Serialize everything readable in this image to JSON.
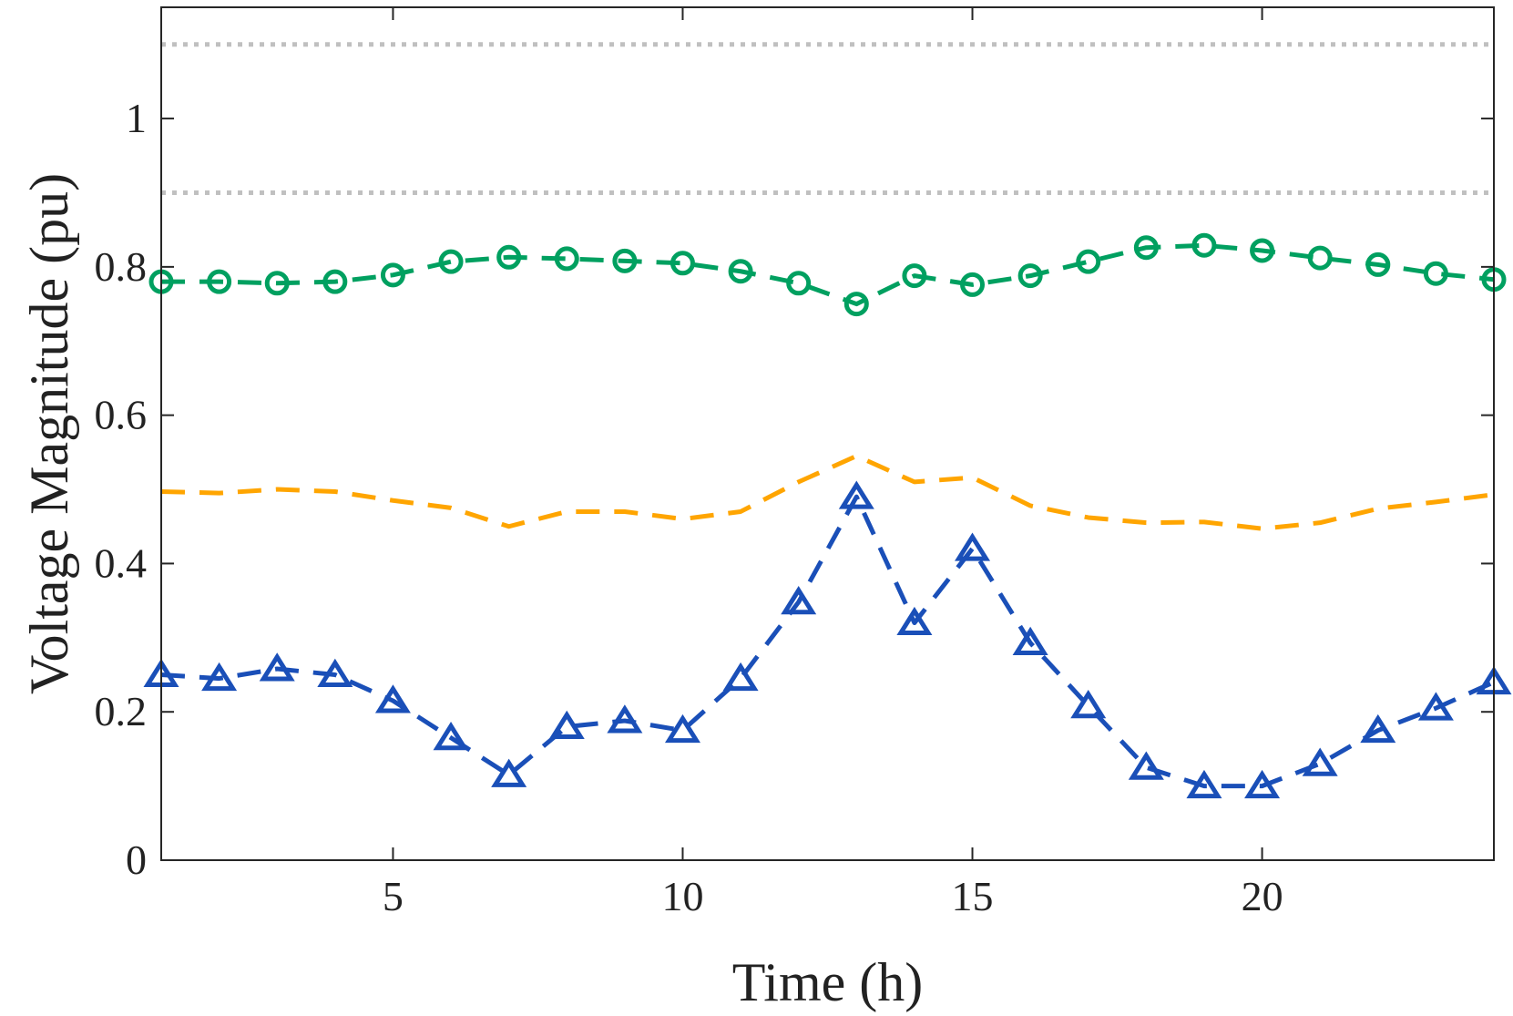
{
  "chart_data": {
    "type": "line",
    "title": "",
    "xlabel": "Time (h)",
    "ylabel": "Voltage Magnitude (pu)",
    "xlim": [
      1,
      24
    ],
    "ylim": [
      0,
      1.15
    ],
    "xticks": [
      5,
      10,
      15,
      20
    ],
    "yticks": [
      0,
      0.2,
      0.4,
      0.6,
      0.8,
      1
    ],
    "ytick_labels": [
      "0",
      "0.2",
      "0.4",
      "0.6",
      "0.8",
      "1"
    ],
    "grid": false,
    "x": [
      1,
      2,
      3,
      4,
      5,
      6,
      7,
      8,
      9,
      10,
      11,
      12,
      13,
      14,
      15,
      16,
      17,
      18,
      19,
      20,
      21,
      22,
      23,
      24
    ],
    "reference_lines": [
      {
        "name": "upper-limit",
        "y": 1.1,
        "color": "#c0c0c0"
      },
      {
        "name": "lower-limit",
        "y": 0.9,
        "color": "#c0c0c0"
      }
    ],
    "series": [
      {
        "name": "green-circles",
        "color": "#00a060",
        "marker": "circle",
        "values": [
          0.78,
          0.78,
          0.778,
          0.78,
          0.789,
          0.807,
          0.813,
          0.811,
          0.808,
          0.805,
          0.794,
          0.778,
          0.75,
          0.788,
          0.776,
          0.788,
          0.807,
          0.826,
          0.829,
          0.822,
          0.812,
          0.803,
          0.791,
          0.783
        ]
      },
      {
        "name": "orange-dashed",
        "color": "#ffa500",
        "marker": "none",
        "values": [
          0.497,
          0.495,
          0.5,
          0.497,
          0.485,
          0.475,
          0.45,
          0.47,
          0.47,
          0.46,
          0.47,
          0.51,
          0.545,
          0.51,
          0.516,
          0.478,
          0.462,
          0.455,
          0.456,
          0.447,
          0.455,
          0.474,
          0.483,
          0.493
        ]
      },
      {
        "name": "blue-triangles",
        "color": "#1a4fb8",
        "marker": "triangle",
        "values": [
          0.25,
          0.245,
          0.258,
          0.25,
          0.215,
          0.165,
          0.115,
          0.18,
          0.188,
          0.175,
          0.245,
          0.348,
          0.49,
          0.32,
          0.42,
          0.293,
          0.208,
          0.125,
          0.1,
          0.1,
          0.13,
          0.175,
          0.205,
          0.24
        ]
      }
    ]
  }
}
